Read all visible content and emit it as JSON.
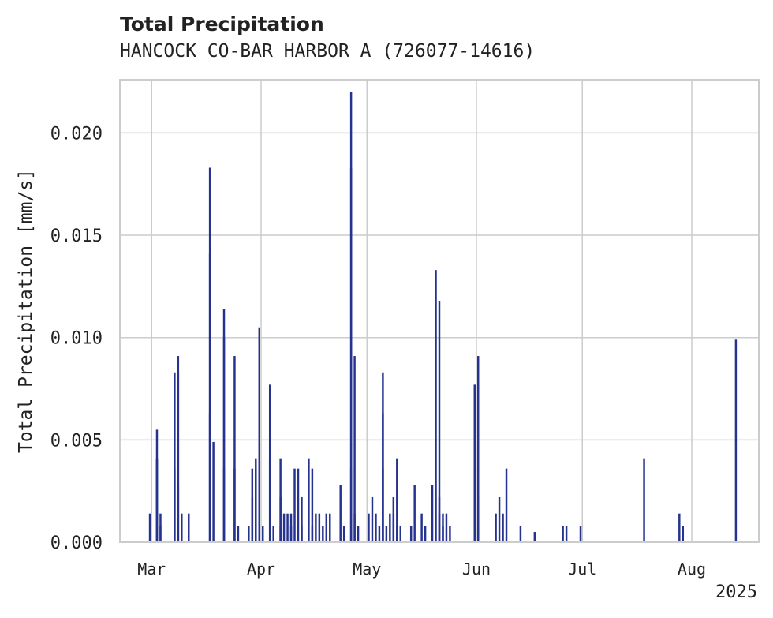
{
  "chart_data": {
    "type": "bar",
    "title": "Total Precipitation",
    "subtitle": "HANCOCK CO-BAR HARBOR A (726077-14616)",
    "xlabel": "",
    "ylabel": "Total Precipitation [mm/s]",
    "xlim": [
      "2025-02-20",
      "2025-08-20"
    ],
    "ylim": [
      0,
      0.0226
    ],
    "x_tick_labels": [
      "Mar",
      "Apr",
      "May",
      "Jun",
      "Jul",
      "Aug"
    ],
    "x_ticks": [
      "2025-03-01",
      "2025-04-01",
      "2025-05-01",
      "2025-06-01",
      "2025-07-01",
      "2025-08-01"
    ],
    "x_offset_label": "2025",
    "y_ticks": [
      0.0,
      0.005,
      0.01,
      0.015,
      0.02
    ],
    "y_tick_labels": [
      "0.000",
      "0.005",
      "0.010",
      "0.015",
      "0.020"
    ],
    "grid": true,
    "bar_color": "#25328f",
    "x": [
      "2025-02-28",
      "2025-03-02",
      "2025-03-02",
      "2025-03-02",
      "2025-03-03",
      "2025-03-03",
      "2025-03-07",
      "2025-03-07",
      "2025-03-08",
      "2025-03-08",
      "2025-03-08",
      "2025-03-09",
      "2025-03-11",
      "2025-03-17",
      "2025-03-17",
      "2025-03-17",
      "2025-03-18",
      "2025-03-21",
      "2025-03-21",
      "2025-03-21",
      "2025-03-24",
      "2025-03-24",
      "2025-03-25",
      "2025-03-28",
      "2025-03-29",
      "2025-03-29",
      "2025-03-30",
      "2025-03-30",
      "2025-03-31",
      "2025-04-01",
      "2025-04-03",
      "2025-04-03",
      "2025-04-04",
      "2025-04-06",
      "2025-04-06",
      "2025-04-06",
      "2025-04-07",
      "2025-04-08",
      "2025-04-09",
      "2025-04-09",
      "2025-04-10",
      "2025-04-11",
      "2025-04-12",
      "2025-04-12",
      "2025-04-14",
      "2025-04-15",
      "2025-04-15",
      "2025-04-16",
      "2025-04-17",
      "2025-04-18",
      "2025-04-19",
      "2025-04-20",
      "2025-04-23",
      "2025-04-24",
      "2025-04-26",
      "2025-04-26",
      "2025-04-26",
      "2025-04-27",
      "2025-04-27",
      "2025-04-28",
      "2025-05-01",
      "2025-05-02",
      "2025-05-03",
      "2025-05-04",
      "2025-05-05",
      "2025-05-05",
      "2025-05-05",
      "2025-05-06",
      "2025-05-07",
      "2025-05-08",
      "2025-05-08",
      "2025-05-09",
      "2025-05-09",
      "2025-05-10",
      "2025-05-13",
      "2025-05-14",
      "2025-05-16",
      "2025-05-17",
      "2025-05-19",
      "2025-05-20",
      "2025-05-21",
      "2025-05-21",
      "2025-05-21",
      "2025-05-22",
      "2025-05-22",
      "2025-05-23",
      "2025-05-24",
      "2025-05-31",
      "2025-05-31",
      "2025-06-01",
      "2025-06-01",
      "2025-06-01",
      "2025-06-06",
      "2025-06-07",
      "2025-06-08",
      "2025-06-09",
      "2025-06-13",
      "2025-06-17",
      "2025-06-25",
      "2025-06-26",
      "2025-06-30",
      "2025-07-18",
      "2025-07-28",
      "2025-07-29",
      "2025-08-13"
    ],
    "values": [
      0.0014,
      0.0041,
      0.0055,
      0.0041,
      0.0014,
      0.0008,
      0.0036,
      0.0083,
      0.0091,
      0.0083,
      0.0028,
      0.0014,
      0.0014,
      0.0063,
      0.0141,
      0.0183,
      0.0049,
      0.0036,
      0.0114,
      0.01,
      0.0036,
      0.0091,
      0.0008,
      0.0008,
      0.0036,
      0.0022,
      0.0036,
      0.0041,
      0.0105,
      0.0008,
      0.0041,
      0.0077,
      0.0008,
      0.0022,
      0.0041,
      0.0008,
      0.0014,
      0.0014,
      0.0014,
      0.0008,
      0.0036,
      0.0036,
      0.0022,
      0.0008,
      0.0041,
      0.0036,
      0.0008,
      0.0014,
      0.0014,
      0.0008,
      0.0014,
      0.0014,
      0.0028,
      0.0008,
      0.0036,
      0.022,
      0.0183,
      0.0091,
      0.0014,
      0.0008,
      0.0014,
      0.0022,
      0.0014,
      0.0008,
      0.0036,
      0.0083,
      0.0063,
      0.0008,
      0.0014,
      0.0014,
      0.0022,
      0.0041,
      0.0008,
      0.0008,
      0.0008,
      0.0028,
      0.0014,
      0.0008,
      0.0028,
      0.0133,
      0.0118,
      0.0022,
      0.0014,
      0.0008,
      0.0014,
      0.0014,
      0.0008,
      0.0077,
      0.0036,
      0.0091,
      0.0022,
      0.0008,
      0.0014,
      0.0022,
      0.0014,
      0.0036,
      0.0008,
      0.0005,
      0.0008,
      0.0008,
      0.0008,
      0.0041,
      0.0014,
      0.0008,
      0.0099
    ]
  }
}
